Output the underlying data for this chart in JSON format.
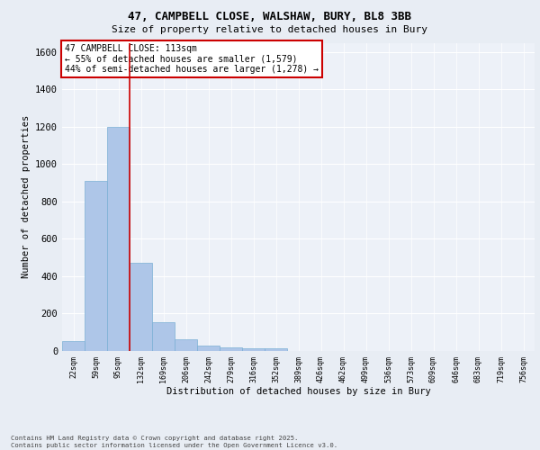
{
  "title_line1": "47, CAMPBELL CLOSE, WALSHAW, BURY, BL8 3BB",
  "title_line2": "Size of property relative to detached houses in Bury",
  "xlabel": "Distribution of detached houses by size in Bury",
  "ylabel": "Number of detached properties",
  "categories": [
    "22sqm",
    "59sqm",
    "95sqm",
    "132sqm",
    "169sqm",
    "206sqm",
    "242sqm",
    "279sqm",
    "316sqm",
    "352sqm",
    "389sqm",
    "426sqm",
    "462sqm",
    "499sqm",
    "536sqm",
    "573sqm",
    "609sqm",
    "646sqm",
    "683sqm",
    "719sqm",
    "756sqm"
  ],
  "values": [
    55,
    910,
    1200,
    470,
    155,
    65,
    30,
    20,
    15,
    15,
    0,
    0,
    0,
    0,
    0,
    0,
    0,
    0,
    0,
    0,
    0
  ],
  "bar_color": "#aec6e8",
  "bar_edge_color": "#7aafd4",
  "vline_x": 2.5,
  "vline_color": "#cc0000",
  "ylim": [
    0,
    1650
  ],
  "yticks": [
    0,
    200,
    400,
    600,
    800,
    1000,
    1200,
    1400,
    1600
  ],
  "annotation_text": "47 CAMPBELL CLOSE: 113sqm\n← 55% of detached houses are smaller (1,579)\n44% of semi-detached houses are larger (1,278) →",
  "annotation_box_color": "#cc0000",
  "annotation_box_facecolor": "#ffffff",
  "footer_text": "Contains HM Land Registry data © Crown copyright and database right 2025.\nContains public sector information licensed under the Open Government Licence v3.0.",
  "bg_color": "#e8edf4",
  "plot_bg_color": "#edf1f8"
}
